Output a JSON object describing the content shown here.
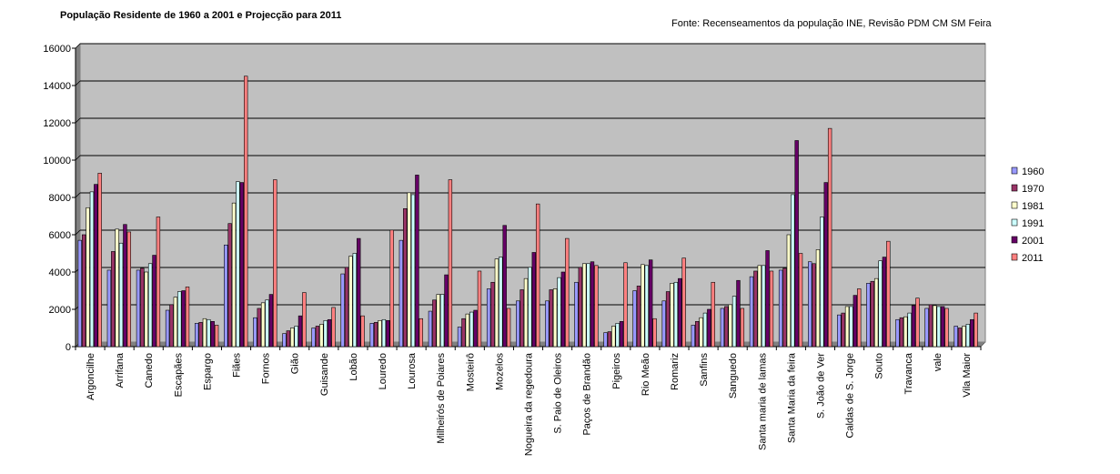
{
  "chart_data": {
    "type": "bar",
    "title": "População Residente de 1960 a 2001 e Projecção para 2011",
    "source": "Fonte: Recenseamentos da população INE, Revisão PDM CM SM Feira",
    "xlabel": "",
    "ylabel": "",
    "ylim": [
      0,
      16000
    ],
    "yticks": [
      0,
      2000,
      4000,
      6000,
      8000,
      10000,
      12000,
      14000,
      16000
    ],
    "grid": true,
    "legend_position": "right",
    "plot_background": "#c0c0c0",
    "categories": [
      "Argoncilhe",
      "Arrifana",
      "Canedo",
      "Escapães",
      "Espargo",
      "Fiães",
      "Fornos",
      "Gião",
      "Guisande",
      "Lobão",
      "Louredo",
      "Lourosa",
      "Milheirós de Poiares",
      "Mosteirô",
      "Mozelos",
      "Nogueira da regedoura",
      "S. Paio de Oleiros",
      "Paços de Brandão",
      "Pigeiros",
      "Rio Meão",
      "Romariz",
      "Sanfins",
      "Sanguedo",
      "Santa maria de lamas",
      "Santa Maria da feira",
      "S. João de Ver",
      "Caldas de S. Jorge",
      "Souto",
      "Travanca",
      "vale",
      "Vila Maior"
    ],
    "series": [
      {
        "name": "1960",
        "color": "#9999ff",
        "values": [
          5700,
          4100,
          4100,
          1950,
          1250,
          5450,
          1550,
          700,
          1000,
          3900,
          1250,
          5700,
          1900,
          1050,
          3100,
          2450,
          2450,
          3450,
          750,
          3000,
          2450,
          1150,
          2050,
          3750,
          4100,
          4550,
          1700,
          3400,
          1450,
          2050,
          1100
        ]
      },
      {
        "name": "1970",
        "color": "#993366",
        "values": [
          6000,
          5100,
          4200,
          2250,
          1300,
          6600,
          2050,
          850,
          1100,
          4250,
          1300,
          7400,
          2500,
          1500,
          3450,
          3050,
          3050,
          4250,
          800,
          3250,
          2950,
          1350,
          2150,
          4050,
          4200,
          4450,
          1800,
          3500,
          1550,
          2250,
          1000
        ]
      },
      {
        "name": "1981",
        "color": "#ffffcc",
        "values": [
          7450,
          6300,
          4000,
          2650,
          1500,
          7700,
          2350,
          1000,
          1200,
          4850,
          1400,
          8250,
          2800,
          1750,
          4700,
          3650,
          3100,
          4450,
          1100,
          4400,
          3400,
          1550,
          2250,
          4350,
          6000,
          5200,
          2150,
          3650,
          1600,
          2200,
          1100
        ]
      },
      {
        "name": "1991",
        "color": "#ccffff",
        "values": [
          8300,
          5550,
          4450,
          2950,
          1450,
          8850,
          2500,
          1100,
          1400,
          5000,
          1450,
          8150,
          2800,
          1850,
          4800,
          4250,
          3700,
          4450,
          1250,
          4350,
          3450,
          1800,
          2700,
          4350,
          8150,
          6950,
          2150,
          4600,
          1800,
          2150,
          1200
        ]
      },
      {
        "name": "2001",
        "color": "#660066",
        "values": [
          8700,
          6550,
          4900,
          3000,
          1350,
          8800,
          2800,
          1650,
          1450,
          5800,
          1400,
          9200,
          3850,
          1950,
          6500,
          5050,
          4000,
          4550,
          1350,
          4650,
          3650,
          2000,
          3550,
          5150,
          11050,
          8800,
          2750,
          4800,
          2200,
          2150,
          1450
        ]
      },
      {
        "name": "2011",
        "color": "#ff8080",
        "values": [
          9300,
          6150,
          6950,
          3200,
          1150,
          14500,
          8950,
          2900,
          2100,
          1650,
          6250,
          1500,
          8950,
          4050,
          2050,
          7650,
          5800,
          4350,
          4500,
          1500,
          4750,
          3450,
          2050,
          4050,
          5000,
          11700,
          3100,
          5650,
          2600,
          2050,
          1800
        ]
      }
    ]
  }
}
